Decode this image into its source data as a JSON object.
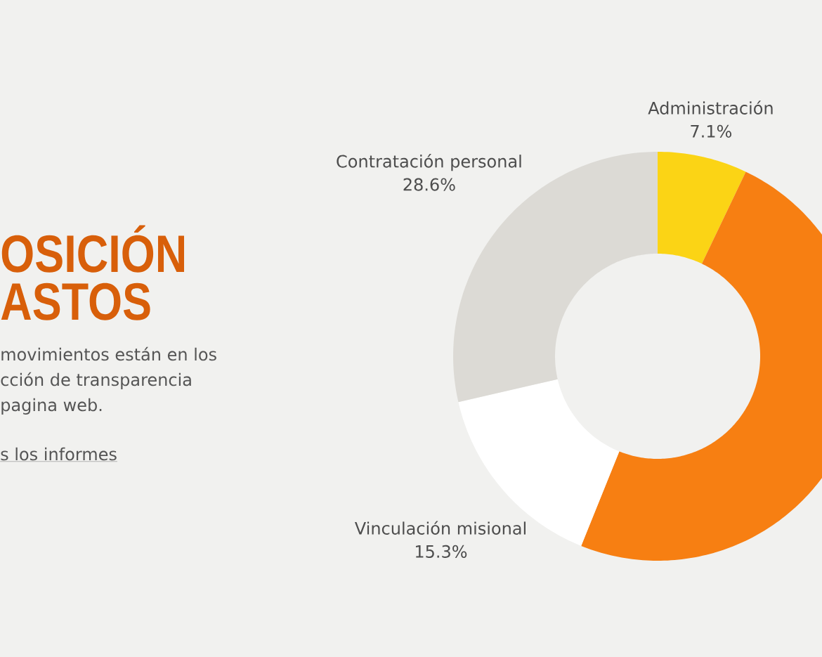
{
  "chart_data": {
    "type": "donut",
    "title": "OSICIÓN ASTOS",
    "categories": [
      "Administración",
      null,
      "Vinculación misional",
      "Contratación personal"
    ],
    "values": [
      7.1,
      49.0,
      15.3,
      28.6
    ],
    "colors": [
      "#fbd415",
      "#f77f12",
      "#ffffff",
      "#dcdad5"
    ],
    "value_labels": [
      "7.1%",
      null,
      "15.3%",
      "28.6%"
    ],
    "annotations": [
      "movimientos están en los",
      "cción de transparencia",
      "pagina web.",
      "s los informes"
    ]
  }
}
